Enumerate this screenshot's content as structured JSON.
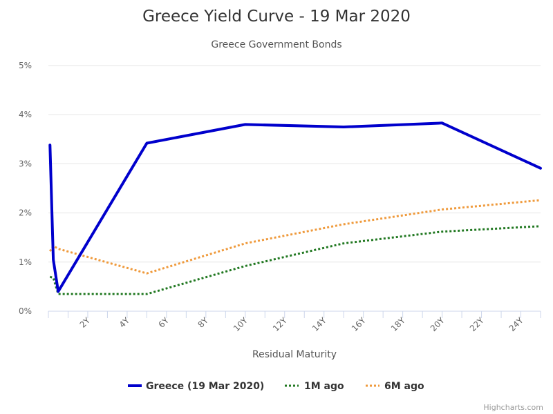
{
  "chart_data": {
    "type": "line",
    "title": "Greece Yield Curve - 19 Mar 2020",
    "subtitle": "Greece Government Bonds",
    "xlabel": "Residual Maturity",
    "ylabel": "",
    "xlim": [
      0,
      25
    ],
    "ylim": [
      0,
      5
    ],
    "x_ticks": [
      {
        "value": 2,
        "label": "2Y"
      },
      {
        "value": 4,
        "label": "4Y"
      },
      {
        "value": 6,
        "label": "6Y"
      },
      {
        "value": 8,
        "label": "8Y"
      },
      {
        "value": 10,
        "label": "10Y"
      },
      {
        "value": 12,
        "label": "12Y"
      },
      {
        "value": 14,
        "label": "14Y"
      },
      {
        "value": 16,
        "label": "16Y"
      },
      {
        "value": 18,
        "label": "18Y"
      },
      {
        "value": 20,
        "label": "20Y"
      },
      {
        "value": 22,
        "label": "22Y"
      },
      {
        "value": 24,
        "label": "24Y"
      }
    ],
    "y_ticks": [
      {
        "value": 0,
        "label": "0%"
      },
      {
        "value": 1,
        "label": "1%"
      },
      {
        "value": 2,
        "label": "2%"
      },
      {
        "value": 3,
        "label": "3%"
      },
      {
        "value": 4,
        "label": "4%"
      },
      {
        "value": 5,
        "label": "5%"
      }
    ],
    "grid": true,
    "legend_position": "bottom",
    "series": [
      {
        "name": "Greece (19 Mar 2020)",
        "color": "#0000cc",
        "dash": "solid",
        "x": [
          0.08,
          0.25,
          0.5,
          5,
          10,
          15,
          20,
          25
        ],
        "y": [
          3.38,
          1.05,
          0.4,
          3.42,
          3.8,
          3.75,
          3.83,
          2.91
        ]
      },
      {
        "name": "1M ago",
        "color": "#217821",
        "dash": "dotted",
        "x": [
          0.08,
          0.25,
          0.5,
          5,
          10,
          15,
          20,
          25
        ],
        "y": [
          0.7,
          0.68,
          0.35,
          0.35,
          0.92,
          1.38,
          1.62,
          1.73
        ]
      },
      {
        "name": "6M ago",
        "color": "#ef9a3c",
        "dash": "dotted",
        "x": [
          0.08,
          0.25,
          0.5,
          5,
          10,
          15,
          20,
          25
        ],
        "y": [
          1.22,
          1.33,
          1.27,
          0.77,
          1.38,
          1.77,
          2.07,
          2.26
        ]
      }
    ]
  },
  "credits": "Highcharts.com"
}
